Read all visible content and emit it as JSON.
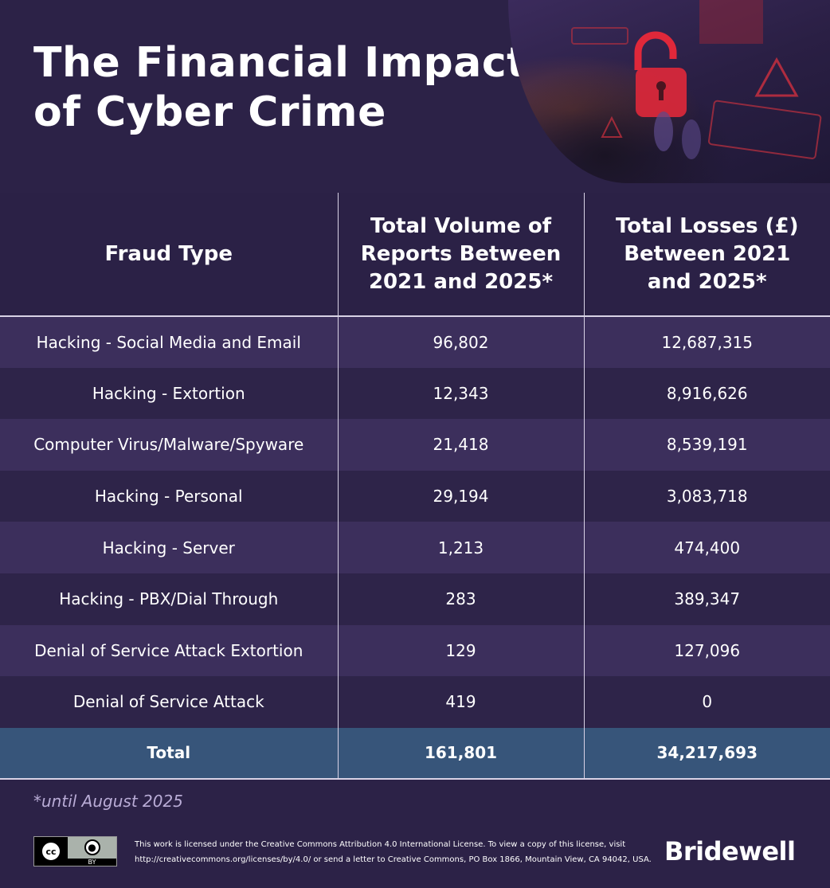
{
  "title_line1": "The Financial Impact",
  "title_line2": "of Cyber Crime",
  "headers": [
    "Fraud Type",
    "Total Volume of Reports Between 2021 and 2025*",
    "Total Losses (£) Between 2021 and 2025*"
  ],
  "header_lines": {
    "h1": [
      "Fraud Type"
    ],
    "h2": [
      "Total Volume of",
      "Reports Between",
      "2021 and 2025*"
    ],
    "h3": [
      "Total Losses (£)",
      "Between 2021",
      "and 2025*"
    ]
  },
  "rows": [
    {
      "type": "Hacking - Social Media and Email",
      "reports": "96,802",
      "losses": "12,687,315"
    },
    {
      "type": "Hacking - Extortion",
      "reports": "12,343",
      "losses": "8,916,626"
    },
    {
      "type": "Computer Virus/Malware/Spyware",
      "reports": "21,418",
      "losses": "8,539,191"
    },
    {
      "type": "Hacking - Personal",
      "reports": "29,194",
      "losses": "3,083,718"
    },
    {
      "type": "Hacking - Server",
      "reports": "1,213",
      "losses": "474,400"
    },
    {
      "type": "Hacking - PBX/Dial Through",
      "reports": "283",
      "losses": "389,347"
    },
    {
      "type": "Denial of Service Attack Extortion",
      "reports": "129",
      "losses": "127,096"
    },
    {
      "type": "Denial of Service Attack",
      "reports": "419",
      "losses": "0"
    }
  ],
  "total": {
    "label": "Total",
    "reports": "161,801",
    "losses": "34,217,693"
  },
  "footnote": "*until August 2025",
  "license": {
    "badge_cc": "cc",
    "badge_by": "BY",
    "line1": "This work is licensed under the Creative Commons Attribution 4.0 International License. To view a copy of this license, visit",
    "line2": "http://creativecommons.org/licenses/by/4.0/ or send a letter to Creative Commons, PO Box 1866, Mountain View, CA 94042, USA."
  },
  "brand": "Bridewell",
  "colors": {
    "background": "#2c2247",
    "row_light": "#3c2f5c",
    "row_dark": "#2e2449",
    "total_row": "#37557a",
    "accent_red": "#e0283a"
  },
  "chart_data": {
    "type": "table",
    "title": "The Financial Impact of Cyber Crime",
    "columns": [
      "Fraud Type",
      "Total Volume of Reports Between 2021 and 2025*",
      "Total Losses (£) Between 2021 and 2025*"
    ],
    "rows": [
      [
        "Hacking - Social Media and Email",
        96802,
        12687315
      ],
      [
        "Hacking - Extortion",
        12343,
        8916626
      ],
      [
        "Computer Virus/Malware/Spyware",
        21418,
        8539191
      ],
      [
        "Hacking - Personal",
        29194,
        3083718
      ],
      [
        "Hacking - Server",
        1213,
        474400
      ],
      [
        "Hacking - PBX/Dial Through",
        283,
        389347
      ],
      [
        "Denial of Service Attack Extortion",
        129,
        127096
      ],
      [
        "Denial of Service Attack",
        419,
        0
      ]
    ],
    "total": [
      "Total",
      161801,
      34217693
    ]
  }
}
